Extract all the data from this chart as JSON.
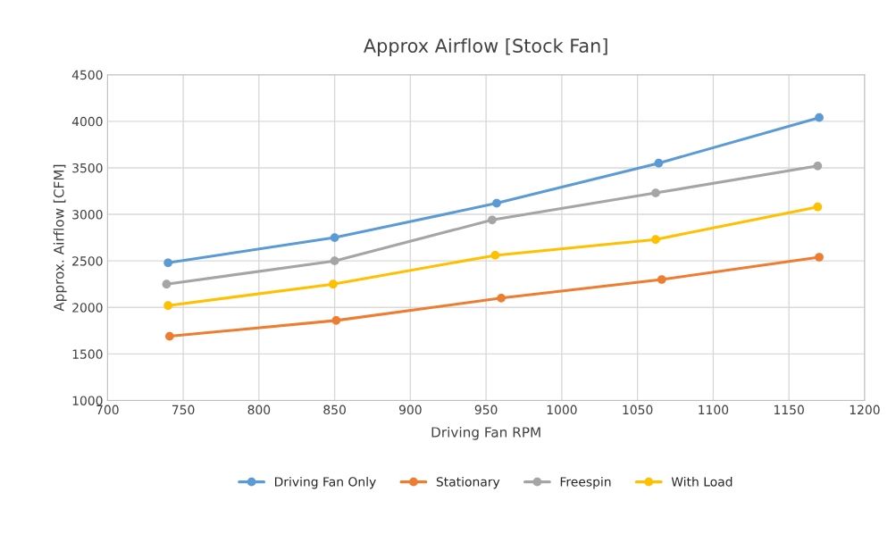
{
  "chart_data": {
    "type": "line",
    "title": "Approx Airflow [Stock Fan]",
    "xlabel": "Driving Fan RPM",
    "ylabel": "Approx. Airflow [CFM]",
    "xlim": [
      700,
      1200
    ],
    "xticks": [
      700,
      750,
      800,
      850,
      900,
      950,
      1000,
      1050,
      1100,
      1150,
      1200
    ],
    "ylim": [
      1000,
      4500
    ],
    "yticks": [
      1000,
      1500,
      2000,
      2500,
      3000,
      3500,
      4000,
      4500
    ],
    "grid": true,
    "legend": "bottom",
    "marker": "circle",
    "line_style": "solid",
    "series": [
      {
        "name": "Driving Fan Only",
        "color": "#5b9bd5",
        "x": [
          740,
          850,
          957,
          1064,
          1170
        ],
        "values": [
          2480,
          2750,
          3120,
          3550,
          4040
        ]
      },
      {
        "name": "Stationary",
        "color": "#ed7d31",
        "x": [
          741,
          851,
          960,
          1066,
          1170
        ],
        "values": [
          1690,
          1860,
          2100,
          2300,
          2540
        ]
      },
      {
        "name": "Freespin",
        "color": "#a5a5a5",
        "x": [
          739,
          850,
          954,
          1062,
          1169
        ],
        "values": [
          2250,
          2500,
          2940,
          3230,
          3520
        ]
      },
      {
        "name": "With Load",
        "color": "#ffc000",
        "x": [
          740,
          849,
          956,
          1062,
          1169
        ],
        "values": [
          2020,
          2250,
          2560,
          2730,
          3080
        ]
      }
    ]
  }
}
